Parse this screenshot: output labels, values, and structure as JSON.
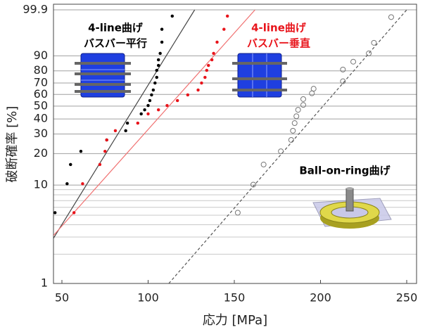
{
  "chart_data": {
    "type": "weibull-scatter",
    "x_label": "応力 [MPa]",
    "y_label": "破断確率 [%]",
    "yscale": "weibull",
    "xlim": [
      45,
      250
    ],
    "xticks": [
      50,
      100,
      150,
      200,
      250
    ],
    "ylim": [
      1,
      99.9
    ],
    "yticks": [
      1,
      10,
      20,
      30,
      40,
      50,
      60,
      70,
      80,
      90,
      99.9
    ],
    "ygrid_minor": [
      2,
      3,
      4,
      5,
      6,
      7,
      8,
      9
    ],
    "grid": true,
    "series": [
      {
        "color": "#000000",
        "marker": "filled",
        "x": [
          46,
          53,
          55,
          61,
          76,
          87,
          88,
          96,
          98,
          100,
          101,
          102,
          103,
          104,
          105,
          105,
          106,
          106,
          107,
          108,
          108,
          114
        ],
        "values": [
          5.3,
          10.3,
          15.8,
          21,
          26.6,
          32,
          37,
          43.8,
          47,
          50.5,
          54.7,
          59.6,
          63.9,
          70,
          74.8,
          80.4,
          84,
          87.7,
          91.3,
          95.9,
          98.7,
          99.74
        ]
      },
      {
        "color": "#e8141b",
        "marker": "filled",
        "x": [
          57,
          62,
          72,
          75,
          76,
          81,
          94,
          100,
          106,
          111,
          117,
          123,
          129,
          131,
          133,
          134,
          135,
          137,
          138,
          140,
          144,
          146
        ],
        "values": [
          5.3,
          10.3,
          15.8,
          21,
          26.6,
          32,
          37,
          43.8,
          47,
          50.5,
          54.7,
          59.6,
          63.9,
          70,
          74.8,
          80.4,
          84,
          87.7,
          91.3,
          95.9,
          98.7,
          99.74
        ]
      },
      {
        "color": "#777777",
        "marker": "open",
        "x": [
          152,
          161,
          167,
          177,
          183,
          184,
          185,
          186,
          187,
          190,
          190,
          195,
          196,
          213,
          213,
          219,
          228,
          231,
          241
        ],
        "values": [
          5.3,
          10.1,
          15.8,
          21,
          26.6,
          32,
          37,
          42,
          47,
          51,
          56,
          61,
          65,
          71.5,
          81,
          86.5,
          91.3,
          95.7,
          99.7
        ]
      }
    ],
    "fits": [
      {
        "color": "#444444",
        "dash": false,
        "x": [
          45,
          127
        ],
        "values": [
          2.9,
          99.9
        ]
      },
      {
        "color": "#f07070",
        "dash": false,
        "x": [
          45,
          162
        ],
        "values": [
          3.1,
          99.9
        ]
      },
      {
        "color": "#555555",
        "dash": true,
        "x": [
          112,
          250
        ],
        "values": [
          1,
          99.9
        ]
      }
    ],
    "annotations": [
      {
        "text": "4-line曲げ",
        "color": "#000000"
      },
      {
        "text": "バスバー平行",
        "color": "#000000"
      },
      {
        "text": "4-line曲げ",
        "color": "#e8141b"
      },
      {
        "text": "バスバー垂直",
        "color": "#e8141b"
      },
      {
        "text": "Ball-on-ring曲げ",
        "color": "#000000"
      }
    ]
  }
}
